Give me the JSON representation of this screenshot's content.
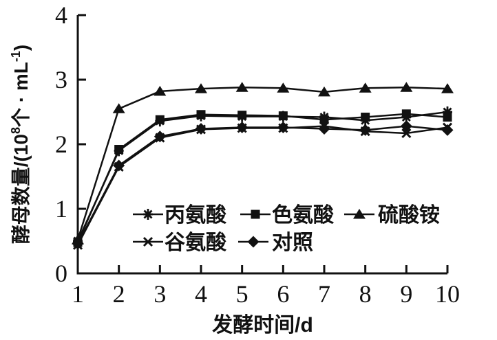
{
  "page": {
    "background": "#ffffff",
    "ink_color": "#111111"
  },
  "chart_data": {
    "type": "line",
    "title": "",
    "xlabel": "发酵时间/d",
    "ylabel": "酵母数量/(10⁸个·mL⁻¹)",
    "ylabel_parts": [
      {
        "text": "酵母数量/(10",
        "sup": false
      },
      {
        "text": "8",
        "sup": true
      },
      {
        "text": "个 · mL",
        "sup": false
      },
      {
        "text": "-1",
        "sup": true
      },
      {
        "text": ")",
        "sup": false
      }
    ],
    "x": [
      1,
      2,
      3,
      4,
      5,
      6,
      7,
      8,
      9,
      10
    ],
    "xticks": [
      1,
      2,
      3,
      4,
      5,
      6,
      7,
      8,
      9,
      10
    ],
    "yticks": [
      0,
      1,
      2,
      3,
      4
    ],
    "xlim": [
      1,
      10
    ],
    "ylim": [
      0,
      4
    ],
    "grid": false,
    "legend_position": "inside-lower-center",
    "line_color": "#111111",
    "series": [
      {
        "id": "alanine",
        "name": "丙氨酸",
        "marker": "asterisk",
        "color": "#111111",
        "values": [
          0.5,
          1.9,
          2.36,
          2.44,
          2.43,
          2.43,
          2.42,
          2.37,
          2.42,
          2.5
        ]
      },
      {
        "id": "tryptophan",
        "name": "色氨酸",
        "marker": "square",
        "color": "#111111",
        "values": [
          0.48,
          1.92,
          2.38,
          2.46,
          2.45,
          2.44,
          2.38,
          2.42,
          2.47,
          2.42
        ]
      },
      {
        "id": "ammonium-sulfate",
        "name": "硫酸铵",
        "marker": "triangle",
        "color": "#111111",
        "values": [
          0.52,
          2.55,
          2.82,
          2.86,
          2.88,
          2.87,
          2.81,
          2.87,
          2.88,
          2.86
        ]
      },
      {
        "id": "glutamate",
        "name": "谷氨酸",
        "marker": "x",
        "color": "#111111",
        "values": [
          0.44,
          1.65,
          2.1,
          2.23,
          2.25,
          2.25,
          2.28,
          2.2,
          2.17,
          2.26
        ]
      },
      {
        "id": "control",
        "name": "对照",
        "marker": "diamond",
        "color": "#111111",
        "values": [
          0.46,
          1.67,
          2.12,
          2.24,
          2.26,
          2.26,
          2.24,
          2.22,
          2.28,
          2.22
        ]
      }
    ],
    "legend_rows": [
      [
        "alanine",
        "tryptophan",
        "ammonium-sulfate"
      ],
      [
        "glutamate",
        "control"
      ]
    ]
  }
}
